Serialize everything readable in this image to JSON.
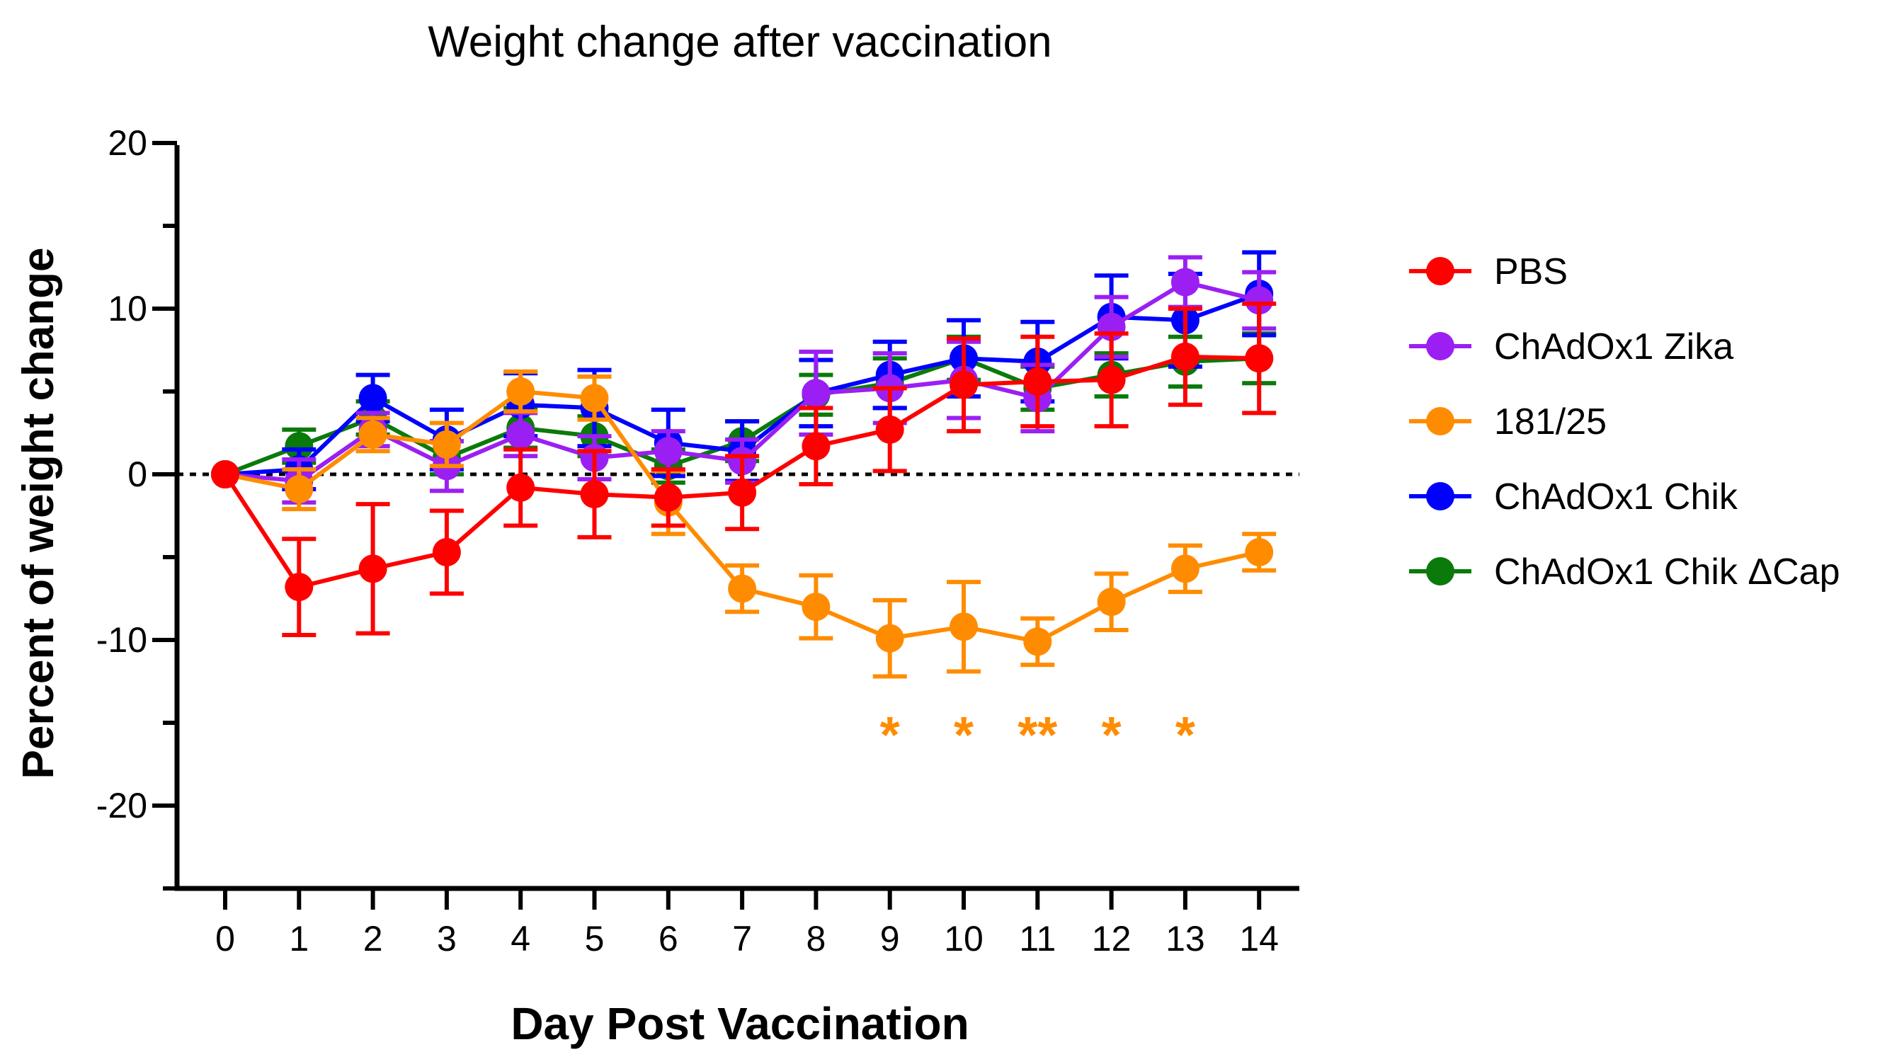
{
  "chart_data": {
    "type": "line",
    "title": "Weight change after vaccination",
    "xlabel": "Day Post Vaccination",
    "ylabel": "Percent of weight change",
    "x": [
      0,
      1,
      2,
      3,
      4,
      5,
      6,
      7,
      8,
      9,
      10,
      11,
      12,
      13,
      14
    ],
    "x_tick_labels": [
      "0",
      "1",
      "2",
      "3",
      "4",
      "5",
      "6",
      "7",
      "8",
      "9",
      "10",
      "11",
      "12",
      "13",
      "14"
    ],
    "ylim": [
      -25,
      20
    ],
    "y_ticks": [
      20,
      10,
      0,
      -10,
      -20
    ],
    "y_tick_labels": [
      "20",
      "10",
      "0",
      "-10",
      "-20"
    ],
    "reference_line": 0,
    "legend_position": "right",
    "series": [
      {
        "name": "ChAdOx1 Chik ΔCap",
        "color": "#0a7a0a",
        "values": [
          0,
          1.7,
          3.4,
          1.0,
          2.8,
          2.3,
          0.5,
          2.0,
          4.8,
          5.5,
          7.0,
          5.2,
          6.0,
          6.8,
          7.0
        ],
        "errors": [
          0,
          1.0,
          1.0,
          1.0,
          1.2,
          1.2,
          1.0,
          1.2,
          1.2,
          1.5,
          1.3,
          1.3,
          1.3,
          1.5,
          1.5
        ]
      },
      {
        "name": "ChAdOx1 Chik",
        "color": "#0000ff",
        "values": [
          0,
          0.3,
          4.6,
          2.1,
          4.2,
          4.0,
          1.9,
          1.4,
          4.9,
          6.0,
          7.0,
          6.8,
          9.5,
          9.3,
          10.9
        ],
        "errors": [
          0,
          1.2,
          1.4,
          1.8,
          1.9,
          2.3,
          2.0,
          1.8,
          2.0,
          2.0,
          2.3,
          2.4,
          2.5,
          2.8,
          2.5
        ]
      },
      {
        "name": "ChAdOx1 Zika",
        "color": "#9b1ff2",
        "values": [
          0,
          -0.4,
          2.7,
          0.5,
          2.4,
          1.0,
          1.4,
          0.8,
          4.9,
          5.2,
          5.7,
          4.6,
          8.9,
          11.6,
          10.5
        ],
        "errors": [
          0,
          1.3,
          1.0,
          1.5,
          1.3,
          1.3,
          1.2,
          1.3,
          2.5,
          2.1,
          2.3,
          2.0,
          1.8,
          1.5,
          1.7
        ]
      },
      {
        "name": "181/25",
        "color": "#ff8c00",
        "values": [
          0,
          -0.9,
          2.4,
          1.8,
          5.0,
          4.6,
          -1.7,
          -6.9,
          -8.0,
          -9.9,
          -9.2,
          -10.1,
          -7.7,
          -5.7,
          -4.7
        ],
        "errors": [
          0,
          1.2,
          1.0,
          1.3,
          1.2,
          1.3,
          1.9,
          1.4,
          1.9,
          2.3,
          2.7,
          1.4,
          1.7,
          1.4,
          1.1
        ]
      },
      {
        "name": "PBS",
        "color": "#ff0000",
        "values": [
          0,
          -6.8,
          -5.7,
          -4.7,
          -0.8,
          -1.2,
          -1.4,
          -1.1,
          1.7,
          2.7,
          5.4,
          5.6,
          5.7,
          7.1,
          7.0
        ],
        "errors": [
          0,
          2.9,
          3.9,
          2.5,
          2.3,
          2.6,
          1.7,
          2.2,
          2.3,
          2.5,
          2.8,
          2.7,
          2.8,
          2.9,
          3.3
        ]
      }
    ],
    "legend": [
      {
        "name": "PBS",
        "color": "#ff0000"
      },
      {
        "name": "ChAdOx1 Zika",
        "color": "#9b1ff2"
      },
      {
        "name": "181/25",
        "color": "#ff8c00"
      },
      {
        "name": "ChAdOx1 Chik",
        "color": "#0000ff"
      },
      {
        "name": "ChAdOx1 Chik ΔCap",
        "color": "#0a7a0a"
      }
    ],
    "annotations": [
      {
        "x": 9,
        "y": -15,
        "text": "*",
        "color": "#ff8c00"
      },
      {
        "x": 10,
        "y": -15,
        "text": "*",
        "color": "#ff8c00"
      },
      {
        "x": 11,
        "y": -15,
        "text": "**",
        "color": "#ff8c00"
      },
      {
        "x": 12,
        "y": -15,
        "text": "*",
        "color": "#ff8c00"
      },
      {
        "x": 13,
        "y": -15,
        "text": "*",
        "color": "#ff8c00"
      }
    ]
  }
}
